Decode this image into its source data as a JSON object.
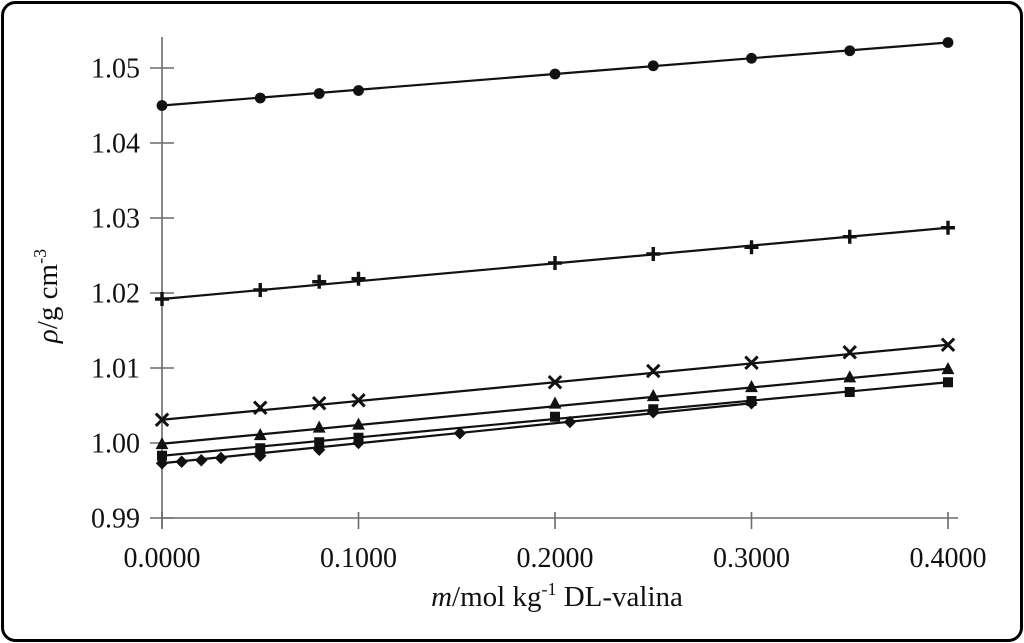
{
  "figure": {
    "background_color": "#ffffff",
    "border_color": "#000000",
    "axis_color": "#6b6b6b",
    "data_color": "#111111"
  },
  "chart_data": {
    "type": "scatter",
    "xlabel": "m/mol kg⁻¹ DL-valina",
    "xlabel_parts": [
      {
        "text": "m",
        "italic": true
      },
      {
        "text": "/mol kg"
      },
      {
        "text": "-1",
        "sup": true
      },
      {
        "text": " DL-valina"
      }
    ],
    "ylabel": "ρ/g cm⁻³",
    "ylabel_parts": [
      {
        "text": "ρ",
        "italic": true
      },
      {
        "text": "/g cm"
      },
      {
        "text": "-3",
        "sup": true
      }
    ],
    "xlim": [
      0.0,
      0.4
    ],
    "ylim": [
      0.99,
      1.054
    ],
    "grid": false,
    "legend": "none",
    "x_ticks": [
      {
        "value": 0.0,
        "label": "0.0000"
      },
      {
        "value": 0.1,
        "label": "0.1000"
      },
      {
        "value": 0.2,
        "label": "0.2000"
      },
      {
        "value": 0.3,
        "label": "0.3000"
      },
      {
        "value": 0.4,
        "label": "0.4000"
      }
    ],
    "y_ticks": [
      {
        "value": 0.99,
        "label": "0.99"
      },
      {
        "value": 1.0,
        "label": "1.00"
      },
      {
        "value": 1.01,
        "label": "1.01"
      },
      {
        "value": 1.02,
        "label": "1.02"
      },
      {
        "value": 1.03,
        "label": "1.03"
      },
      {
        "value": 1.04,
        "label": "1.04"
      },
      {
        "value": 1.05,
        "label": "1.05"
      }
    ],
    "series": [
      {
        "name": "filled-circle-series",
        "marker": "circle",
        "x": [
          0.0,
          0.05,
          0.08,
          0.1,
          0.2,
          0.25,
          0.3,
          0.35,
          0.4
        ],
        "y": [
          1.045,
          1.046,
          1.0466,
          1.047,
          1.0492,
          1.0503,
          1.0513,
          1.0523,
          1.0534
        ]
      },
      {
        "name": "plus-series",
        "marker": "plus",
        "x": [
          0.0,
          0.05,
          0.08,
          0.1,
          0.2,
          0.25,
          0.3,
          0.35,
          0.4
        ],
        "y": [
          1.0192,
          1.0204,
          1.0215,
          1.0219,
          1.024,
          1.0252,
          1.0261,
          1.0275,
          1.0287
        ]
      },
      {
        "name": "x-cross-series",
        "marker": "x-cross",
        "x": [
          0.0,
          0.05,
          0.08,
          0.1,
          0.2,
          0.25,
          0.3,
          0.35,
          0.4
        ],
        "y": [
          1.0031,
          1.0047,
          1.0053,
          1.0057,
          1.0081,
          1.0096,
          1.0107,
          1.0121,
          1.0131
        ]
      },
      {
        "name": "triangle-series",
        "marker": "triangle",
        "x": [
          0.0,
          0.05,
          0.08,
          0.1,
          0.2,
          0.25,
          0.3,
          0.35,
          0.4
        ],
        "y": [
          0.9999,
          1.0011,
          1.0021,
          1.0025,
          1.0053,
          1.0063,
          1.0075,
          1.0088,
          1.0099
        ]
      },
      {
        "name": "square-series",
        "marker": "square",
        "x": [
          0.0,
          0.05,
          0.08,
          0.1,
          0.2,
          0.25,
          0.3,
          0.35,
          0.4
        ],
        "y": [
          0.9983,
          0.9993,
          1.0001,
          1.0007,
          1.0035,
          1.0045,
          1.0056,
          1.0068,
          1.0081
        ]
      },
      {
        "name": "diamond-series",
        "marker": "diamond",
        "x": [
          0.0,
          0.01,
          0.02,
          0.03,
          0.05,
          0.08,
          0.1,
          0.1516,
          0.2076,
          0.25,
          0.3
        ],
        "y": [
          0.9973,
          0.9975,
          0.9977,
          0.998,
          0.9983,
          0.9991,
          1.0,
          1.0013,
          1.0028,
          1.0041,
          1.0053
        ]
      }
    ]
  }
}
